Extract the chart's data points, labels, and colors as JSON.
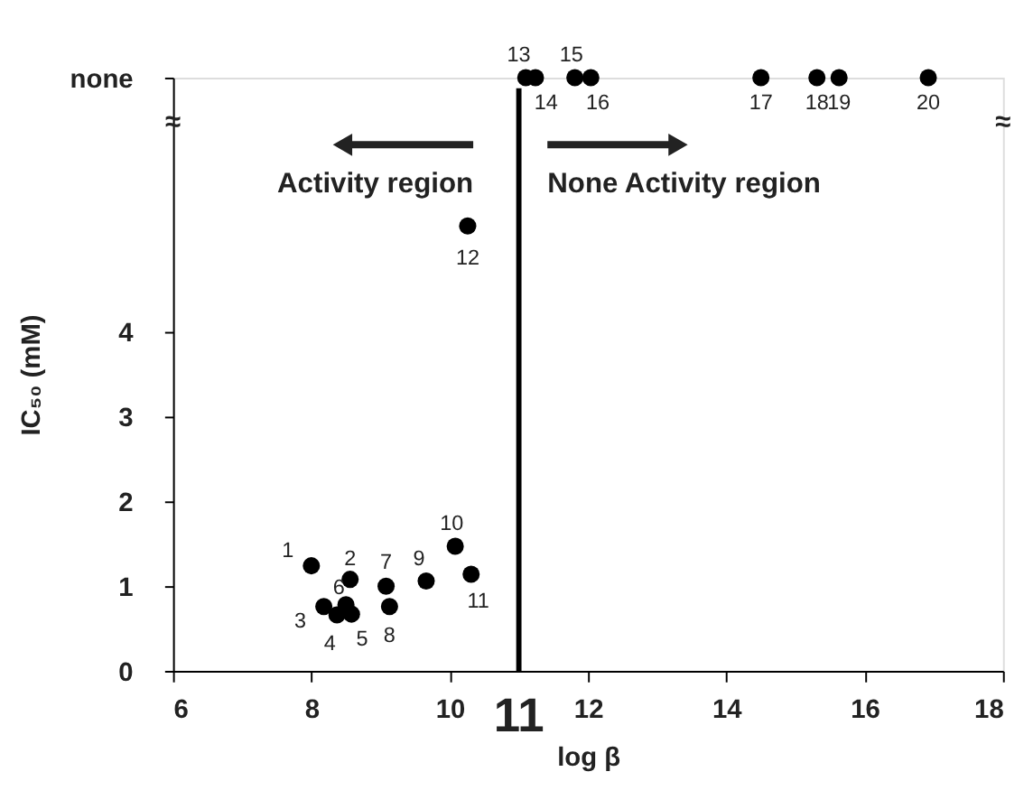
{
  "chart_data": {
    "type": "scatter",
    "xlabel": "log β",
    "ylabel": "IC₅₀ (mM)",
    "xlim": [
      6,
      18
    ],
    "xticks": [
      6,
      8,
      10,
      12,
      14,
      16,
      18
    ],
    "ylim": [
      0,
      7
    ],
    "yticks": [
      0,
      1,
      2,
      3,
      4,
      {
        "value": 7,
        "label": "none"
      }
    ],
    "grid": false,
    "marker": "circle",
    "series": [
      {
        "color": "#000000",
        "x": [
          8.0,
          8.56,
          8.18,
          8.37,
          8.58,
          8.5,
          9.08,
          9.13,
          9.66,
          10.08,
          10.31,
          10.26,
          11.1,
          11.24,
          11.81,
          12.04,
          14.5,
          15.31,
          15.63,
          16.92
        ],
        "values": [
          1.24,
          1.08,
          0.76,
          0.66,
          0.67,
          0.78,
          1.0,
          0.76,
          1.06,
          1.47,
          1.14,
          5.25,
          7,
          7,
          7,
          7,
          7,
          7,
          7,
          7
        ]
      }
    ],
    "ref_lines": [
      {
        "axis": "x",
        "value": 11,
        "label": "11",
        "color": "#000000"
      }
    ],
    "annotations": [
      "Activity region",
      "None Activity region",
      "≈",
      "≈",
      {
        "text": "1",
        "x": 8.0,
        "y": 1.24
      },
      {
        "text": "2",
        "x": 8.56,
        "y": 1.08
      },
      {
        "text": "3",
        "x": 8.18,
        "y": 0.76
      },
      {
        "text": "4",
        "x": 8.37,
        "y": 0.66
      },
      {
        "text": "5",
        "x": 8.58,
        "y": 0.67
      },
      {
        "text": "6",
        "x": 8.5,
        "y": 0.78
      },
      {
        "text": "7",
        "x": 9.08,
        "y": 1.0
      },
      {
        "text": "8",
        "x": 9.13,
        "y": 0.76
      },
      {
        "text": "9",
        "x": 9.66,
        "y": 1.06
      },
      {
        "text": "10",
        "x": 10.08,
        "y": 1.47
      },
      {
        "text": "11",
        "x": 10.31,
        "y": 1.14
      },
      {
        "text": "12",
        "x": 10.26,
        "y": 5.25
      },
      {
        "text": "13",
        "x": 11.1,
        "y": 7
      },
      {
        "text": "14",
        "x": 11.24,
        "y": 7
      },
      {
        "text": "15",
        "x": 11.81,
        "y": 7
      },
      {
        "text": "16",
        "x": 12.04,
        "y": 7
      },
      {
        "text": "17",
        "x": 14.5,
        "y": 7
      },
      {
        "text": "18",
        "x": 15.31,
        "y": 7
      },
      {
        "text": "19",
        "x": 15.63,
        "y": 7
      },
      {
        "text": "20",
        "x": 16.92,
        "y": 7
      }
    ]
  }
}
